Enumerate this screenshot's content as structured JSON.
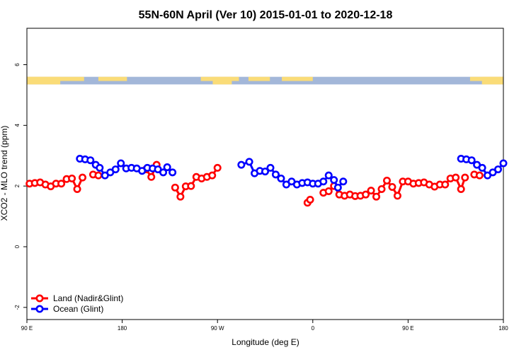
{
  "chart_data": {
    "type": "line",
    "title": "55N-60N April (Ver 10)   2015-01-01 to 2020-12-18",
    "xlabel": "Longitude (deg E)",
    "ylabel": "XCO2 - MLO trend (ppm)",
    "xlim": [
      90,
      450
    ],
    "ylim": [
      -2.4,
      7.2
    ],
    "x_ticks": [
      {
        "value": 90,
        "label": "90 E"
      },
      {
        "value": 162,
        "label": "180"
      },
      {
        "value": 234,
        "label": "90 W"
      },
      {
        "value": 306,
        "label": "0"
      },
      {
        "value": 378,
        "label": "90 E"
      },
      {
        "value": 450,
        "label": "180"
      }
    ],
    "y_ticks": [
      {
        "value": -2,
        "label": "-2"
      },
      {
        "value": 0,
        "label": "0"
      },
      {
        "value": 2,
        "label": "2"
      },
      {
        "value": 4,
        "label": "4"
      },
      {
        "value": 6,
        "label": "6"
      }
    ],
    "legend_position": "bottom-left",
    "land_ocean_strip": {
      "y_range": [
        5.35,
        5.6
      ],
      "land_color": "#fadc78",
      "ocean_color": "#a3b7d9"
    },
    "series": [
      {
        "name": "Land (Nadir&Glint)",
        "color": "#ff0000",
        "segments": [
          [
            [
              92,
              2.08
            ],
            [
              96,
              2.1
            ],
            [
              100,
              2.12
            ],
            [
              104,
              2.05
            ],
            [
              108,
              1.99
            ],
            [
              112,
              2.08
            ],
            [
              116,
              2.08
            ],
            [
              120,
              2.23
            ],
            [
              124,
              2.25
            ],
            [
              128,
              1.9
            ],
            [
              132,
              2.28
            ]
          ],
          [
            [
              140,
              2.38
            ],
            [
              144,
              2.35
            ]
          ],
          [
            [
              180,
              2.55
            ],
            [
              184,
              2.3
            ],
            [
              188,
              2.7
            ]
          ],
          [
            [
              202,
              1.95
            ],
            [
              206,
              1.65
            ],
            [
              210,
              1.99
            ],
            [
              214,
              2.0
            ],
            [
              218,
              2.3
            ],
            [
              222,
              2.25
            ],
            [
              226,
              2.3
            ],
            [
              230,
              2.35
            ],
            [
              234,
              2.6
            ]
          ],
          [
            [
              302,
              1.45
            ],
            [
              304,
              1.55
            ]
          ],
          [
            [
              314,
              1.78
            ],
            [
              318,
              1.83
            ],
            [
              322,
              2.0
            ],
            [
              326,
              1.72
            ],
            [
              330,
              1.68
            ],
            [
              334,
              1.72
            ],
            [
              338,
              1.67
            ],
            [
              342,
              1.68
            ],
            [
              346,
              1.72
            ],
            [
              350,
              1.85
            ],
            [
              354,
              1.65
            ],
            [
              358,
              1.9
            ],
            [
              362,
              2.18
            ],
            [
              366,
              1.97
            ],
            [
              370,
              1.68
            ],
            [
              374,
              2.15
            ],
            [
              378,
              2.15
            ],
            [
              382,
              2.08
            ],
            [
              386,
              2.1
            ],
            [
              390,
              2.12
            ],
            [
              394,
              2.05
            ],
            [
              398,
              1.98
            ],
            [
              402,
              2.05
            ],
            [
              406,
              2.05
            ],
            [
              410,
              2.25
            ],
            [
              414,
              2.28
            ],
            [
              418,
              1.9
            ],
            [
              421,
              2.28
            ]
          ],
          [
            [
              428,
              2.38
            ],
            [
              432,
              2.35
            ]
          ]
        ]
      },
      {
        "name": "Ocean (Glint)",
        "color": "#0000ff",
        "segments": [
          [
            [
              130,
              2.9
            ],
            [
              134,
              2.88
            ],
            [
              138,
              2.85
            ],
            [
              142,
              2.7
            ],
            [
              145,
              2.6
            ],
            [
              149,
              2.35
            ],
            [
              153,
              2.45
            ],
            [
              157,
              2.55
            ],
            [
              161,
              2.75
            ],
            [
              165,
              2.58
            ],
            [
              169,
              2.6
            ],
            [
              173,
              2.58
            ],
            [
              177,
              2.5
            ],
            [
              181,
              2.6
            ],
            [
              185,
              2.58
            ],
            [
              189,
              2.55
            ],
            [
              193,
              2.45
            ],
            [
              196,
              2.62
            ],
            [
              200,
              2.45
            ]
          ],
          [
            [
              252,
              2.7
            ],
            [
              258,
              2.8
            ],
            [
              262,
              2.42
            ],
            [
              266,
              2.5
            ],
            [
              270,
              2.48
            ],
            [
              274,
              2.6
            ],
            [
              278,
              2.38
            ],
            [
              282,
              2.25
            ],
            [
              286,
              2.05
            ],
            [
              290,
              2.15
            ],
            [
              294,
              2.05
            ],
            [
              298,
              2.1
            ],
            [
              302,
              2.12
            ],
            [
              306,
              2.08
            ],
            [
              310,
              2.08
            ],
            [
              314,
              2.15
            ],
            [
              318,
              2.35
            ],
            [
              322,
              2.2
            ],
            [
              325,
              1.95
            ],
            [
              329,
              2.15
            ]
          ],
          [
            [
              418,
              2.9
            ],
            [
              422,
              2.88
            ],
            [
              426,
              2.85
            ],
            [
              430,
              2.7
            ],
            [
              434,
              2.6
            ],
            [
              438,
              2.35
            ],
            [
              442,
              2.45
            ],
            [
              446,
              2.55
            ],
            [
              450,
              2.75
            ]
          ]
        ]
      }
    ]
  }
}
